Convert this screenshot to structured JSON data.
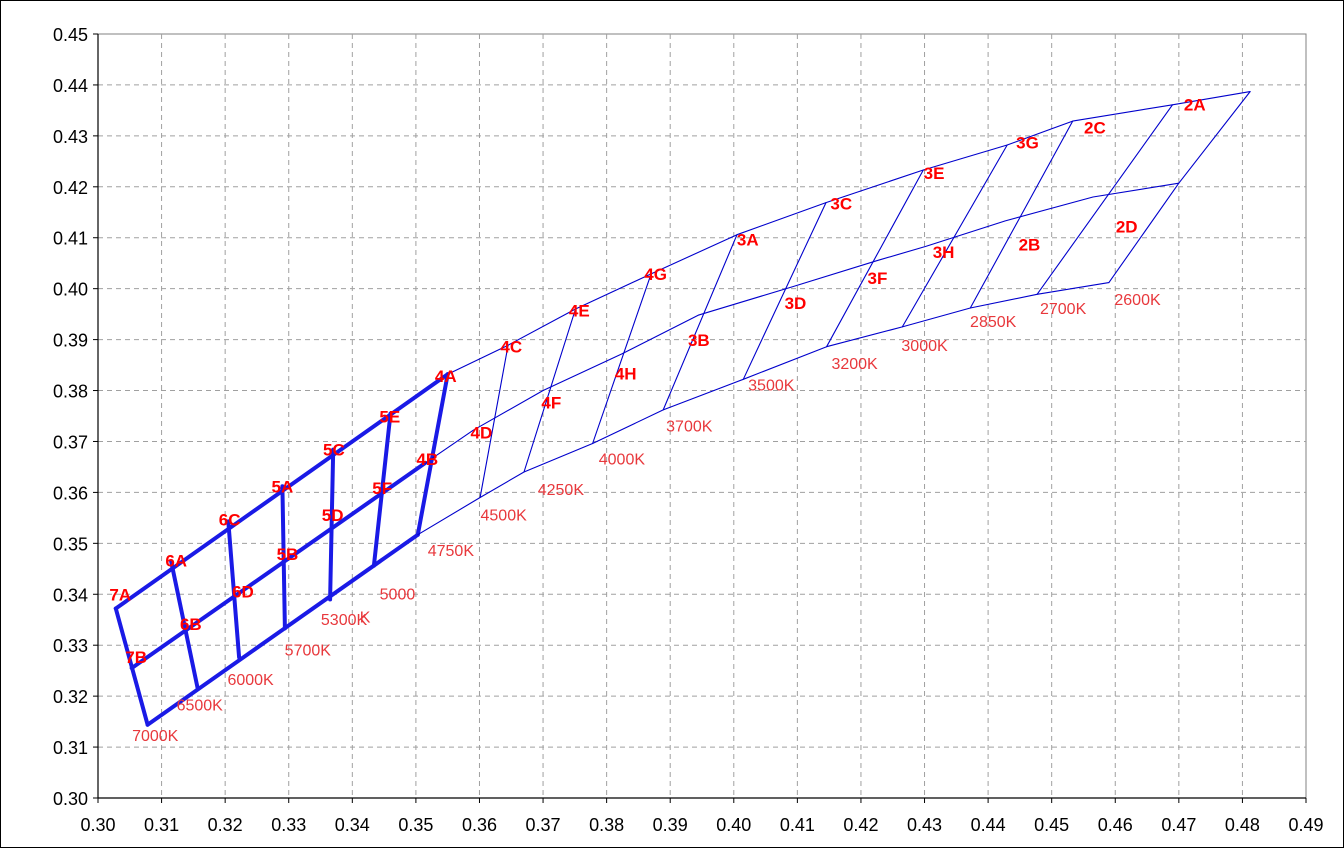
{
  "chart_data": {
    "type": "line",
    "title": "",
    "xlabel": "",
    "ylabel": "",
    "xlim": [
      0.3,
      0.49
    ],
    "ylim": [
      0.3,
      0.45
    ],
    "grid": true,
    "x_ticks": [
      "0.30",
      "0.31",
      "0.32",
      "0.33",
      "0.34",
      "0.35",
      "0.36",
      "0.37",
      "0.38",
      "0.39",
      "0.40",
      "0.41",
      "0.42",
      "0.43",
      "0.44",
      "0.45",
      "0.46",
      "0.47",
      "0.48",
      "0.49"
    ],
    "y_ticks": [
      "0.30",
      "0.31",
      "0.32",
      "0.33",
      "0.34",
      "0.35",
      "0.36",
      "0.37",
      "0.38",
      "0.39",
      "0.40",
      "0.41",
      "0.42",
      "0.43",
      "0.44",
      "0.45"
    ],
    "colors": {
      "bold_lines": "#1a1ae6",
      "thin_lines": "#0000cc",
      "bin_labels": "#ff0000",
      "cct_labels": "#e8383c"
    },
    "series": [
      {
        "style": "bold",
        "points": [
          [
            0.3028,
            0.3372
          ],
          [
            0.355,
            0.3832
          ]
        ]
      },
      {
        "style": "bold",
        "points": [
          [
            0.3053,
            0.3255
          ],
          [
            0.3515,
            0.3658
          ]
        ]
      },
      {
        "style": "bold",
        "points": [
          [
            0.3078,
            0.3144
          ],
          [
            0.3503,
            0.3517
          ]
        ]
      },
      {
        "style": "bold",
        "points": [
          [
            0.3028,
            0.3372
          ],
          [
            0.3078,
            0.3144
          ]
        ]
      },
      {
        "style": "bold",
        "points": [
          [
            0.3115,
            0.3465
          ],
          [
            0.3157,
            0.3214
          ]
        ]
      },
      {
        "style": "bold",
        "points": [
          [
            0.3205,
            0.3543
          ],
          [
            0.3222,
            0.3276
          ]
        ]
      },
      {
        "style": "bold",
        "points": [
          [
            0.329,
            0.3612
          ],
          [
            0.3294,
            0.3333
          ]
        ]
      },
      {
        "style": "bold",
        "points": [
          [
            0.337,
            0.3684
          ],
          [
            0.3365,
            0.339
          ]
        ]
      },
      {
        "style": "bold",
        "points": [
          [
            0.346,
            0.3755
          ],
          [
            0.3434,
            0.3456
          ]
        ]
      },
      {
        "style": "bold",
        "points": [
          [
            0.355,
            0.3832
          ],
          [
            0.3503,
            0.3517
          ]
        ]
      },
      {
        "style": "thin",
        "points": [
          [
            0.355,
            0.3832
          ],
          [
            0.3645,
            0.3889
          ],
          [
            0.3751,
            0.396
          ],
          [
            0.387,
            0.4029
          ],
          [
            0.4005,
            0.4106
          ],
          [
            0.4145,
            0.4169
          ],
          [
            0.4298,
            0.4233
          ],
          [
            0.443,
            0.4282
          ],
          [
            0.4533,
            0.4329
          ],
          [
            0.469,
            0.4361
          ],
          [
            0.4812,
            0.4387
          ]
        ]
      },
      {
        "style": "thin",
        "points": [
          [
            0.3515,
            0.3658
          ],
          [
            0.359,
            0.3722
          ],
          [
            0.37,
            0.38
          ],
          [
            0.3824,
            0.3872
          ],
          [
            0.3944,
            0.3948
          ],
          [
            0.4093,
            0.4004
          ],
          [
            0.4225,
            0.4055
          ],
          [
            0.4302,
            0.4083
          ],
          [
            0.4427,
            0.4133
          ],
          [
            0.4565,
            0.418
          ],
          [
            0.47,
            0.4207
          ]
        ]
      },
      {
        "style": "thin",
        "points": [
          [
            0.3503,
            0.3517
          ],
          [
            0.3601,
            0.359
          ],
          [
            0.367,
            0.364
          ],
          [
            0.3778,
            0.3696
          ],
          [
            0.3889,
            0.3762
          ],
          [
            0.4015,
            0.3822
          ],
          [
            0.4146,
            0.3886
          ],
          [
            0.4265,
            0.3925
          ],
          [
            0.4372,
            0.3962
          ],
          [
            0.4477,
            0.3989
          ],
          [
            0.459,
            0.4012
          ]
        ]
      },
      {
        "style": "thin",
        "points": [
          [
            0.3645,
            0.3889
          ],
          [
            0.3601,
            0.359
          ]
        ]
      },
      {
        "style": "thin",
        "points": [
          [
            0.3751,
            0.396
          ],
          [
            0.367,
            0.364
          ]
        ]
      },
      {
        "style": "thin",
        "points": [
          [
            0.387,
            0.4029
          ],
          [
            0.3778,
            0.3696
          ]
        ]
      },
      {
        "style": "thin",
        "points": [
          [
            0.4005,
            0.4106
          ],
          [
            0.3889,
            0.3762
          ]
        ]
      },
      {
        "style": "thin",
        "points": [
          [
            0.4145,
            0.4169
          ],
          [
            0.4015,
            0.3822
          ]
        ]
      },
      {
        "style": "thin",
        "points": [
          [
            0.4298,
            0.4233
          ],
          [
            0.4146,
            0.3886
          ]
        ]
      },
      {
        "style": "thin",
        "points": [
          [
            0.443,
            0.4282
          ],
          [
            0.4265,
            0.3925
          ]
        ]
      },
      {
        "style": "thin",
        "points": [
          [
            0.4533,
            0.4329
          ],
          [
            0.4372,
            0.3962
          ]
        ]
      },
      {
        "style": "thin",
        "points": [
          [
            0.469,
            0.4361
          ],
          [
            0.4477,
            0.3989
          ]
        ]
      },
      {
        "style": "thin",
        "points": [
          [
            0.4812,
            0.4387
          ],
          [
            0.47,
            0.4207
          ],
          [
            0.459,
            0.4012
          ]
        ]
      }
    ],
    "bin_labels": [
      {
        "text": "7A",
        "x": 0.3035,
        "y": 0.3388
      },
      {
        "text": "6A",
        "x": 0.3123,
        "y": 0.3455
      },
      {
        "text": "6C",
        "x": 0.3207,
        "y": 0.3535
      },
      {
        "text": "5A",
        "x": 0.329,
        "y": 0.36
      },
      {
        "text": "5C",
        "x": 0.3371,
        "y": 0.3672
      },
      {
        "text": "5E",
        "x": 0.3459,
        "y": 0.3737
      },
      {
        "text": "4A",
        "x": 0.3547,
        "y": 0.3817
      },
      {
        "text": "7B",
        "x": 0.306,
        "y": 0.3265
      },
      {
        "text": "6B",
        "x": 0.3146,
        "y": 0.333
      },
      {
        "text": "6D",
        "x": 0.3228,
        "y": 0.3394
      },
      {
        "text": "5B",
        "x": 0.3298,
        "y": 0.3467
      },
      {
        "text": "5D",
        "x": 0.3369,
        "y": 0.3544
      },
      {
        "text": "5F",
        "x": 0.3447,
        "y": 0.3597
      },
      {
        "text": "4B",
        "x": 0.3518,
        "y": 0.3654
      },
      {
        "text": "4C",
        "x": 0.365,
        "y": 0.3875
      },
      {
        "text": "4E",
        "x": 0.3757,
        "y": 0.3945
      },
      {
        "text": "4G",
        "x": 0.3877,
        "y": 0.4017
      },
      {
        "text": "3A",
        "x": 0.4022,
        "y": 0.4085
      },
      {
        "text": "3C",
        "x": 0.4169,
        "y": 0.4155
      },
      {
        "text": "3E",
        "x": 0.4315,
        "y": 0.4215
      },
      {
        "text": "3G",
        "x": 0.4462,
        "y": 0.4275
      },
      {
        "text": "2C",
        "x": 0.4568,
        "y": 0.4305
      },
      {
        "text": "2A",
        "x": 0.4725,
        "y": 0.435
      },
      {
        "text": "4D",
        "x": 0.3603,
        "y": 0.3706
      },
      {
        "text": "4F",
        "x": 0.3713,
        "y": 0.3765
      },
      {
        "text": "4H",
        "x": 0.383,
        "y": 0.3822
      },
      {
        "text": "3B",
        "x": 0.3945,
        "y": 0.3887
      },
      {
        "text": "3D",
        "x": 0.4097,
        "y": 0.396
      },
      {
        "text": "3F",
        "x": 0.4226,
        "y": 0.4009
      },
      {
        "text": "3H",
        "x": 0.433,
        "y": 0.406
      },
      {
        "text": "2B",
        "x": 0.4465,
        "y": 0.4075
      },
      {
        "text": "2D",
        "x": 0.4618,
        "y": 0.411
      }
    ],
    "cct_labels": [
      {
        "text": "7000K",
        "x": 0.309,
        "y": 0.3112
      },
      {
        "text": "6500K",
        "x": 0.316,
        "y": 0.3172
      },
      {
        "text": "6000K",
        "x": 0.324,
        "y": 0.3222
      },
      {
        "text": "5700K",
        "x": 0.333,
        "y": 0.328
      },
      {
        "text": "5300K",
        "x": 0.3387,
        "y": 0.334
      },
      {
        "text": "5000",
        "x": 0.3471,
        "y": 0.339
      },
      {
        "text": "K",
        "x": 0.342,
        "y": 0.3345
      },
      {
        "text": "4750K",
        "x": 0.3555,
        "y": 0.3475
      },
      {
        "text": "4500K",
        "x": 0.3638,
        "y": 0.3545
      },
      {
        "text": "4250K",
        "x": 0.3728,
        "y": 0.3595
      },
      {
        "text": "4000K",
        "x": 0.3824,
        "y": 0.3655
      },
      {
        "text": "3700K",
        "x": 0.393,
        "y": 0.372
      },
      {
        "text": "3500K",
        "x": 0.4059,
        "y": 0.38
      },
      {
        "text": "3200K",
        "x": 0.419,
        "y": 0.3842
      },
      {
        "text": "3000K",
        "x": 0.43,
        "y": 0.3878
      },
      {
        "text": "2850K",
        "x": 0.4408,
        "y": 0.3925
      },
      {
        "text": "2700K",
        "x": 0.4518,
        "y": 0.395
      },
      {
        "text": "2600K",
        "x": 0.4635,
        "y": 0.3968
      }
    ]
  }
}
